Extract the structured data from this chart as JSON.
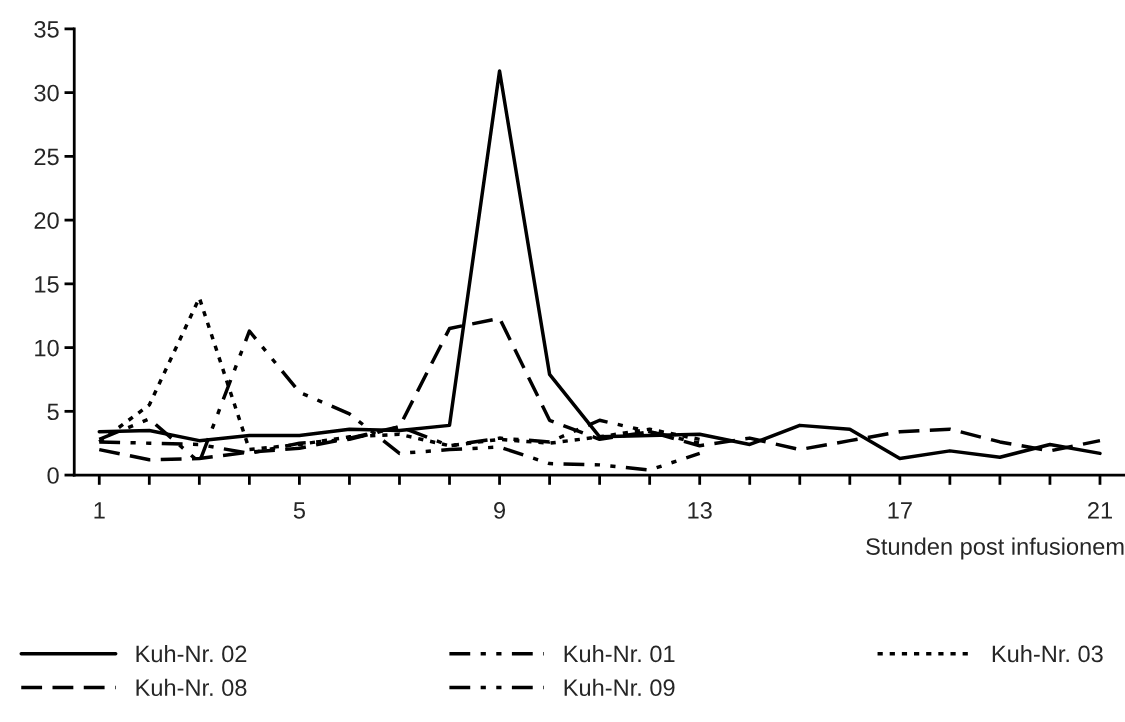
{
  "chart_data": {
    "type": "line",
    "xlabel": "Stunden post infusionem",
    "x": [
      1,
      2,
      3,
      4,
      5,
      6,
      7,
      8,
      9,
      10,
      11,
      12,
      13,
      14,
      15,
      16,
      17,
      18,
      19,
      20,
      21
    ],
    "xlim": [
      0.5,
      21.5
    ],
    "xticks": [
      1,
      {
        "value": 2,
        "label": null
      },
      {
        "value": 3,
        "label": null
      },
      {
        "value": 4,
        "label": null
      },
      5,
      {
        "value": 6,
        "label": null
      },
      {
        "value": 7,
        "label": null
      },
      {
        "value": 8,
        "label": null
      },
      9,
      {
        "value": 10,
        "label": null
      },
      {
        "value": 11,
        "label": null
      },
      {
        "value": 12,
        "label": null
      },
      13,
      {
        "value": 14,
        "label": null
      },
      {
        "value": 15,
        "label": null
      },
      {
        "value": 16,
        "label": null
      },
      17,
      {
        "value": 18,
        "label": null
      },
      {
        "value": 19,
        "label": null
      },
      {
        "value": 20,
        "label": null
      },
      21
    ],
    "ylim": [
      0,
      35
    ],
    "yticks": [
      0,
      5,
      10,
      15,
      20,
      25,
      30,
      35
    ],
    "grid": false,
    "legend": "bottom",
    "marker": "none",
    "series": [
      {
        "name": "Kuh-Nr. 02",
        "color": "#000000",
        "line_style": "solid",
        "values": [
          3.4,
          3.5,
          2.7,
          3.1,
          3.1,
          3.6,
          3.5,
          3.9,
          31.7,
          7.9,
          3.0,
          3.1,
          3.2,
          2.4,
          3.9,
          3.6,
          1.3,
          1.9,
          1.4,
          2.4,
          1.7
        ]
      },
      {
        "name": "Kuh-Nr. 08",
        "color": "#000000",
        "line_style": "dashed",
        "values": [
          2.0,
          1.2,
          1.3,
          1.8,
          2.1,
          2.9,
          3.8,
          11.5,
          12.3,
          4.3,
          2.8,
          3.4,
          2.3,
          2.9,
          2.0,
          2.7,
          3.4,
          3.6,
          2.6,
          1.9,
          2.7
        ]
      },
      {
        "name": "Kuh-Nr. 01",
        "color": "#000000",
        "line_style": "dashdot",
        "values": [
          2.8,
          4.4,
          1.0,
          11.3,
          6.5,
          4.8,
          1.7,
          2.0,
          2.2,
          0.9,
          0.8,
          0.4,
          1.7,
          null,
          null,
          null,
          null,
          null,
          null,
          null,
          null
        ]
      },
      {
        "name": "Kuh-Nr. 09",
        "color": "#000000",
        "line_style": "dashdot",
        "values": [
          2.6,
          2.5,
          2.4,
          1.7,
          2.5,
          2.8,
          3.8,
          2.3,
          2.9,
          2.6,
          4.3,
          3.4,
          2.5,
          null,
          null,
          null,
          null,
          null,
          null,
          null,
          null
        ]
      },
      {
        "name": "Kuh-Nr. 03",
        "color": "#000000",
        "line_style": "dotted",
        "values": [
          2.6,
          5.5,
          13.9,
          2.0,
          2.4,
          3.0,
          3.2,
          2.3,
          2.8,
          2.5,
          3.0,
          3.6,
          2.8,
          null,
          null,
          null,
          null,
          null,
          null,
          null,
          null
        ]
      }
    ]
  }
}
